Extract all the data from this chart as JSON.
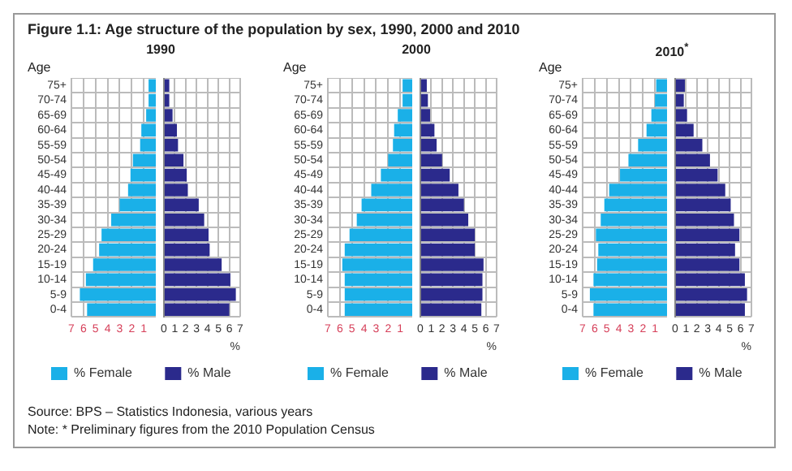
{
  "chart_data": [
    {
      "type": "bar",
      "orientation": "horizontal",
      "title": "Figure 1.1: Age structure of the population by sex, 1990, 2000 and 2010",
      "subtitle": "1990",
      "ylabel": "Age",
      "grid": true,
      "legend": "bottom",
      "categories": [
        "75+",
        "70-74",
        "65-69",
        "60-64",
        "55-59",
        "50-54",
        "45-49",
        "40-44",
        "35-39",
        "30-34",
        "25-29",
        "20-24",
        "15-19",
        "10-14",
        "5-9",
        "0-4"
      ],
      "series": [
        {
          "name": "% Female",
          "color": "#1ab0e8",
          "values": [
            0.6,
            0.6,
            0.8,
            1.2,
            1.3,
            1.9,
            2.1,
            2.3,
            3.0,
            3.7,
            4.5,
            4.7,
            5.2,
            5.8,
            6.3,
            5.7
          ]
        }
      ],
      "xlim": [
        7,
        0
      ],
      "xticks": [
        7,
        6,
        5,
        4,
        3,
        2,
        1
      ],
      "annotations": [
        "Source: BPS – Statistics Indonesia, various years",
        "Note: * Preliminary figures from the 2010 Population Census"
      ]
    },
    {
      "type": "bar",
      "orientation": "horizontal",
      "xlabel": "%",
      "grid": true,
      "legend": "bottom",
      "tick_labels": "x",
      "categories": [
        null,
        null,
        null,
        null,
        null,
        null,
        null,
        null,
        null,
        null,
        null,
        null,
        null,
        null,
        null,
        null
      ],
      "series": [
        {
          "name": "% Male",
          "color": "#2b2a8c",
          "values": [
            0.5,
            0.5,
            0.8,
            1.2,
            1.3,
            1.8,
            2.1,
            2.2,
            3.2,
            3.7,
            4.1,
            4.2,
            5.3,
            6.1,
            6.6,
            6.0
          ]
        }
      ],
      "xlim": [
        0,
        7
      ],
      "xticks": [
        0,
        1,
        2,
        3,
        4,
        5,
        6,
        7
      ]
    },
    {
      "type": "bar",
      "orientation": "horizontal",
      "subtitle": "2000",
      "ylabel": "Age",
      "grid": true,
      "legend": "bottom",
      "categories": [
        "75+",
        "70-74",
        "65-69",
        "60-64",
        "55-59",
        "50-54",
        "45-49",
        "40-44",
        "35-39",
        "30-34",
        "25-29",
        "20-24",
        "15-19",
        "10-14",
        "5-9",
        "0-4"
      ],
      "series": [
        {
          "name": "% Female",
          "color": "#1ab0e8",
          "values": [
            0.8,
            0.8,
            1.2,
            1.5,
            1.6,
            2.0,
            2.6,
            3.4,
            4.2,
            4.6,
            5.2,
            5.6,
            5.8,
            5.6,
            5.6,
            5.6
          ]
        }
      ],
      "xlim": [
        7,
        0
      ],
      "xticks": [
        7,
        6,
        5,
        4,
        3,
        2,
        1
      ]
    },
    {
      "type": "bar",
      "orientation": "horizontal",
      "xlabel": "%",
      "grid": true,
      "legend": "bottom",
      "tick_labels": "x",
      "categories": [
        null,
        null,
        null,
        null,
        null,
        null,
        null,
        null,
        null,
        null,
        null,
        null,
        null,
        null,
        null,
        null
      ],
      "series": [
        {
          "name": "% Male",
          "color": "#2b2a8c",
          "values": [
            0.6,
            0.7,
            0.9,
            1.3,
            1.5,
            2.0,
            2.7,
            3.5,
            4.0,
            4.4,
            5.0,
            5.0,
            5.8,
            5.7,
            5.7,
            5.6
          ]
        }
      ],
      "xlim": [
        0,
        7
      ],
      "xticks": [
        0,
        1,
        2,
        3,
        4,
        5,
        6,
        7
      ]
    },
    {
      "type": "bar",
      "orientation": "horizontal",
      "subtitle": "2010$^{*}$",
      "ylabel": "Age",
      "grid": true,
      "legend": "bottom",
      "categories": [
        "75+",
        "70-74",
        "65-69",
        "60-64",
        "55-59",
        "50-54",
        "45-49",
        "40-44",
        "35-39",
        "30-34",
        "25-29",
        "20-24",
        "15-19",
        "10-14",
        "5-9",
        "0-4"
      ],
      "series": [
        {
          "name": "% Female",
          "color": "#1ab0e8",
          "values": [
            0.9,
            1.0,
            1.3,
            1.7,
            2.4,
            3.2,
            3.9,
            4.8,
            5.2,
            5.5,
            5.9,
            5.7,
            5.8,
            6.1,
            6.4,
            6.1
          ]
        }
      ],
      "xlim": [
        7,
        0
      ],
      "xticks": [
        7,
        6,
        5,
        4,
        3,
        2,
        1
      ]
    },
    {
      "type": "bar",
      "orientation": "horizontal",
      "xlabel": "%",
      "grid": true,
      "legend": "bottom",
      "tick_labels": "x",
      "categories": [
        null,
        null,
        null,
        null,
        null,
        null,
        null,
        null,
        null,
        null,
        null,
        null,
        null,
        null,
        null,
        null
      ],
      "series": [
        {
          "name": "% Male",
          "color": "#2b2a8c",
          "values": [
            0.9,
            0.8,
            1.1,
            1.7,
            2.5,
            3.2,
            3.9,
            4.6,
            5.1,
            5.4,
            5.9,
            5.5,
            5.9,
            6.4,
            6.6,
            6.4
          ]
        }
      ],
      "xlim": [
        0,
        7
      ],
      "xticks": [
        0,
        1,
        2,
        3,
        4,
        5,
        6,
        7
      ]
    }
  ]
}
